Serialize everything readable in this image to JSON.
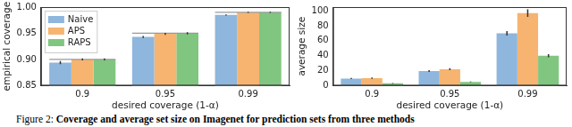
{
  "caption_label": "Figure 2:",
  "caption": "Coverage and average set size on Imagenet for prediction sets from three methods",
  "chart_data": [
    {
      "type": "bar",
      "x_label": "desired coverage (1-α)",
      "y_label": "empirical coverage",
      "categories": [
        "0.9",
        "0.95",
        "0.99"
      ],
      "target_lines": [
        0.9,
        0.95,
        0.99
      ],
      "ylim": [
        0.85,
        1.0
      ],
      "yticks": [
        0.85,
        {
          "value": 0.9,
          "label": "0.90"
        },
        0.95,
        {
          "value": 1.0,
          "label": "1.00"
        }
      ],
      "grid": false,
      "legend": "upper left",
      "series": [
        {
          "name": "Naive",
          "color": "#8fb6dc",
          "values": [
            0.894,
            0.943,
            0.985
          ],
          "errors": [
            0.003,
            0.002,
            0.001
          ]
        },
        {
          "name": "APS",
          "color": "#f6b470",
          "values": [
            0.9,
            0.949,
            0.99
          ],
          "errors": [
            0.002,
            0.002,
            0.001
          ]
        },
        {
          "name": "RAPS",
          "color": "#80c680",
          "values": [
            0.9,
            0.95,
            0.99
          ],
          "errors": [
            0.002,
            0.002,
            0.001
          ]
        }
      ]
    },
    {
      "type": "bar",
      "x_label": "desired coverage (1-α)",
      "y_label": "average size",
      "categories": [
        "0.9",
        "0.95",
        "0.99"
      ],
      "ylim": [
        0,
        105
      ],
      "yticks": [
        0,
        20,
        40,
        60,
        80,
        100
      ],
      "grid": false,
      "series": [
        {
          "name": "Naive",
          "color": "#8fb6dc",
          "values": [
            9.5,
            19.5,
            70
          ],
          "errors": [
            0.8,
            1.2,
            3
          ]
        },
        {
          "name": "APS",
          "color": "#f6b470",
          "values": [
            10,
            22,
            97
          ],
          "errors": [
            0.8,
            1.2,
            5
          ]
        },
        {
          "name": "RAPS",
          "color": "#80c680",
          "values": [
            3,
            5,
            40
          ],
          "errors": [
            0.3,
            0.5,
            2
          ]
        }
      ]
    }
  ]
}
